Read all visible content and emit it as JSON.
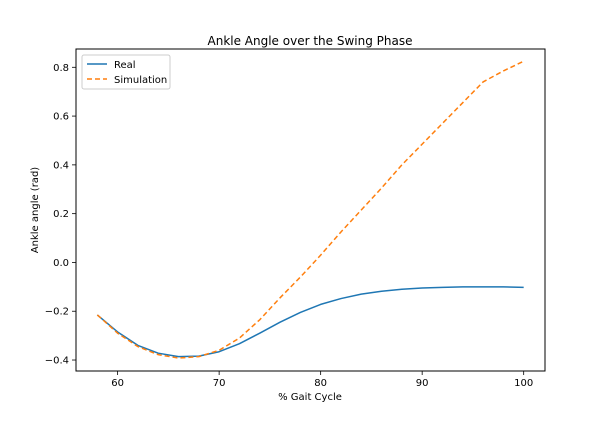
{
  "chart_data": {
    "type": "line",
    "title": "Ankle Angle over the Swing Phase",
    "xlabel": "% Gait Cycle",
    "ylabel": "Ankle angle (rad)",
    "xlim": [
      55.9,
      102.1
    ],
    "ylim": [
      -0.445,
      0.875
    ],
    "xticks": [
      60,
      70,
      80,
      90,
      100
    ],
    "yticks": [
      -0.4,
      -0.2,
      0.0,
      0.2,
      0.4,
      0.6,
      0.8
    ],
    "xtick_labels": [
      "60",
      "70",
      "80",
      "90",
      "100"
    ],
    "ytick_labels": [
      "−0.4",
      "−0.2",
      "0.0",
      "0.2",
      "0.4",
      "0.6",
      "0.8"
    ],
    "grid": false,
    "legend_position": "top-left",
    "series": [
      {
        "name": "Real",
        "color": "#1f77b4",
        "style": "solid",
        "x": [
          58,
          60,
          62,
          64,
          66,
          68,
          70,
          72,
          74,
          76,
          78,
          80,
          82,
          84,
          86,
          88,
          90,
          92,
          94,
          96,
          98,
          100
        ],
        "y": [
          -0.215,
          -0.285,
          -0.34,
          -0.372,
          -0.386,
          -0.384,
          -0.366,
          -0.333,
          -0.29,
          -0.245,
          -0.205,
          -0.172,
          -0.148,
          -0.13,
          -0.118,
          -0.11,
          -0.105,
          -0.102,
          -0.1,
          -0.1,
          -0.1,
          -0.102
        ]
      },
      {
        "name": "Simulation",
        "color": "#ff7f0e",
        "style": "dashed",
        "x": [
          58,
          60,
          62,
          64,
          66,
          68,
          70,
          72,
          74,
          76,
          78,
          80,
          82,
          84,
          86,
          88,
          90,
          92,
          94,
          96,
          98,
          100
        ],
        "y": [
          -0.215,
          -0.29,
          -0.345,
          -0.378,
          -0.392,
          -0.386,
          -0.36,
          -0.31,
          -0.235,
          -0.145,
          -0.06,
          0.03,
          0.125,
          0.215,
          0.305,
          0.4,
          0.485,
          0.57,
          0.655,
          0.74,
          0.785,
          0.825
        ]
      }
    ]
  }
}
